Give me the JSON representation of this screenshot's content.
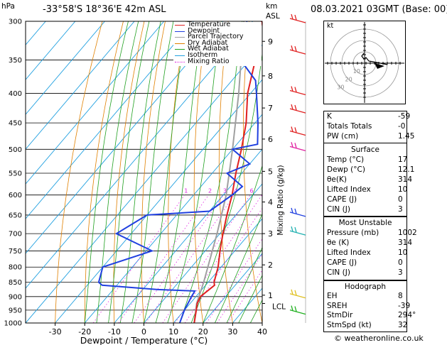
{
  "header": {
    "hpa_label": "hPa",
    "location": "-33°58'S  18°36'E  42m  ASL",
    "km_label": "km",
    "asl_label": "ASL",
    "date": "08.03.2021  03GMT  (Base: 00)"
  },
  "legend": [
    {
      "label": "Temperature",
      "color": "#e02020"
    },
    {
      "label": "Dewpoint",
      "color": "#2040e0"
    },
    {
      "label": "Parcel Trajectory",
      "color": "#a0a0a0"
    },
    {
      "label": "Dry Adiabat",
      "color": "#e08000"
    },
    {
      "label": "Wet Adiabat",
      "color": "#20a020"
    },
    {
      "label": "Isotherm",
      "color": "#20a0e0"
    },
    {
      "label": "Mixing Ratio",
      "color": "#e020e0"
    }
  ],
  "chart_data": {
    "type": "skew-t",
    "xlabel": "Dewpoint / Temperature (°C)",
    "pressure_axis_label": "hPa",
    "pressure_ticks": [
      300,
      350,
      400,
      450,
      500,
      550,
      600,
      650,
      700,
      750,
      800,
      850,
      900,
      950,
      1000
    ],
    "temp_ticks": [
      -30,
      -20,
      -10,
      0,
      10,
      20,
      30,
      40
    ],
    "temp_range": [
      -40,
      40
    ],
    "km_ticks": [
      {
        "label": "9",
        "p": 325
      },
      {
        "label": "8",
        "p": 373
      },
      {
        "label": "7",
        "p": 424
      },
      {
        "label": "6",
        "p": 480
      },
      {
        "label": "5",
        "p": 546
      },
      {
        "label": "4",
        "p": 617
      },
      {
        "label": "3",
        "p": 700
      },
      {
        "label": "2",
        "p": 793
      },
      {
        "label": "1",
        "p": 895
      }
    ],
    "lcl_label": "LCL",
    "lcl_p": 925,
    "mixing_ratio_label": "Mixing Ratio (g/kg)",
    "mixing_ratio_values": [
      "1",
      "2",
      "3",
      "4",
      "6",
      "8",
      "10",
      "16",
      "20",
      "25"
    ],
    "temperature": [
      {
        "p": 1000,
        "t": 17
      },
      {
        "p": 950,
        "t": 14
      },
      {
        "p": 925,
        "t": 12.4
      },
      {
        "p": 900,
        "t": 11.5
      },
      {
        "p": 860,
        "t": 13
      },
      {
        "p": 850,
        "t": 12
      },
      {
        "p": 800,
        "t": 9
      },
      {
        "p": 750,
        "t": 5
      },
      {
        "p": 700,
        "t": 1
      },
      {
        "p": 650,
        "t": -3
      },
      {
        "p": 600,
        "t": -7
      },
      {
        "p": 550,
        "t": -12
      },
      {
        "p": 500,
        "t": -17
      },
      {
        "p": 450,
        "t": -23
      },
      {
        "p": 400,
        "t": -31
      },
      {
        "p": 350,
        "t": -38
      },
      {
        "p": 300,
        "t": -47
      }
    ],
    "dewpoint": [
      {
        "p": 1000,
        "t": 12.1
      },
      {
        "p": 950,
        "t": 10
      },
      {
        "p": 900,
        "t": 8.5
      },
      {
        "p": 880,
        "t": 8
      },
      {
        "p": 875,
        "t": -5
      },
      {
        "p": 860,
        "t": -25
      },
      {
        "p": 850,
        "t": -27
      },
      {
        "p": 800,
        "t": -30
      },
      {
        "p": 750,
        "t": -18
      },
      {
        "p": 700,
        "t": -35
      },
      {
        "p": 650,
        "t": -30
      },
      {
        "p": 640,
        "t": -10
      },
      {
        "p": 600,
        "t": -7
      },
      {
        "p": 580,
        "t": -6
      },
      {
        "p": 550,
        "t": -15
      },
      {
        "p": 530,
        "t": -10
      },
      {
        "p": 500,
        "t": -20
      },
      {
        "p": 490,
        "t": -13
      },
      {
        "p": 450,
        "t": -19
      },
      {
        "p": 400,
        "t": -28
      },
      {
        "p": 380,
        "t": -32
      },
      {
        "p": 350,
        "t": -43
      },
      {
        "p": 330,
        "t": -45
      },
      {
        "p": 300,
        "t": -52
      }
    ],
    "parcel": [
      {
        "p": 1000,
        "t": 17
      },
      {
        "p": 925,
        "t": 12.2
      },
      {
        "p": 850,
        "t": 8.5
      },
      {
        "p": 700,
        "t": -1
      },
      {
        "p": 600,
        "t": -9
      },
      {
        "p": 500,
        "t": -20
      },
      {
        "p": 400,
        "t": -34
      },
      {
        "p": 300,
        "t": -53
      }
    ]
  },
  "hodograph": {
    "label": "kt",
    "ring_labels": [
      "10",
      "20",
      "30"
    ]
  },
  "indices": {
    "rows": [
      {
        "k": "K",
        "v": "-59"
      },
      {
        "k": "Totals Totals",
        "v": "-0"
      },
      {
        "k": "PW (cm)",
        "v": "1.45"
      }
    ]
  },
  "surface": {
    "title": "Surface",
    "rows": [
      {
        "k": "Temp (°C)",
        "v": "17"
      },
      {
        "k": "Dewp (°C)",
        "v": "12.1"
      },
      {
        "k": "θe(K)",
        "v": "314"
      },
      {
        "k": "Lifted Index",
        "v": "10"
      },
      {
        "k": "CAPE (J)",
        "v": "0"
      },
      {
        "k": "CIN (J)",
        "v": "3"
      }
    ]
  },
  "most_unstable": {
    "title": "Most Unstable",
    "rows": [
      {
        "k": "Pressure (mb)",
        "v": "1002"
      },
      {
        "k": "θe (K)",
        "v": "314"
      },
      {
        "k": "Lifted Index",
        "v": "10"
      },
      {
        "k": "CAPE (J)",
        "v": "0"
      },
      {
        "k": "CIN (J)",
        "v": "3"
      }
    ]
  },
  "hodograph_stats": {
    "title": "Hodograph",
    "rows": [
      {
        "k": "EH",
        "v": "8"
      },
      {
        "k": "SREH",
        "v": "-39"
      },
      {
        "k": "StmDir",
        "v": "294°"
      },
      {
        "k": "StmSpd (kt)",
        "v": "32"
      }
    ]
  },
  "footer": {
    "copyright": "© weatheronline.co.uk"
  }
}
